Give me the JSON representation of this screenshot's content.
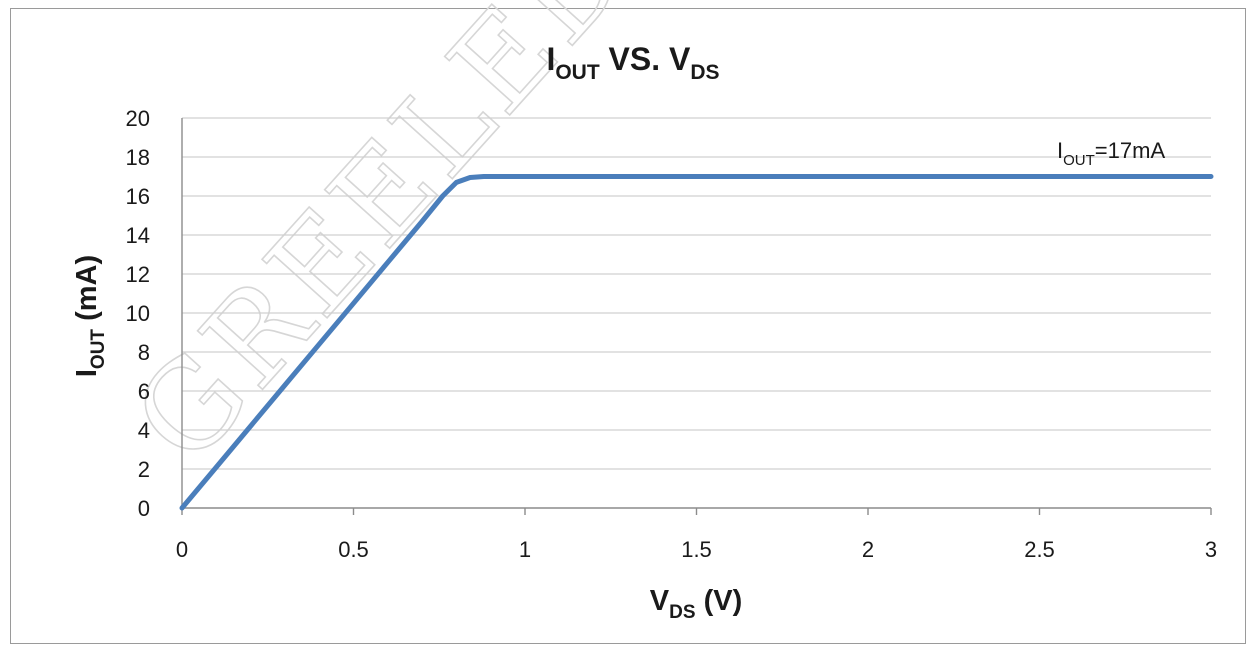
{
  "chart_data": {
    "type": "line",
    "title": {
      "base1": "I",
      "sub1": "OUT",
      "mid": " VS. V",
      "sub2": "DS"
    },
    "xlabel": {
      "base": "V",
      "sub": "DS",
      "rest": " (V)"
    },
    "ylabel": {
      "base": "I",
      "sub": "OUT",
      "rest": " (mA)"
    },
    "xlim": [
      0,
      3
    ],
    "ylim": [
      0,
      20
    ],
    "x_ticks": [
      0,
      0.5,
      1,
      1.5,
      2,
      2.5,
      3
    ],
    "x_tick_labels": [
      "0",
      "0.5",
      "1",
      "1.5",
      "2",
      "2.5",
      "3"
    ],
    "y_ticks": [
      0,
      2,
      4,
      6,
      8,
      10,
      12,
      14,
      16,
      18,
      20
    ],
    "y_tick_labels": [
      "0",
      "2",
      "4",
      "6",
      "8",
      "10",
      "12",
      "14",
      "16",
      "18",
      "20"
    ],
    "grid": "horizontal",
    "series": [
      {
        "color": "#4a7ebb",
        "x": [
          0,
          0.1,
          0.2,
          0.3,
          0.4,
          0.5,
          0.6,
          0.7,
          0.76,
          0.8,
          0.84,
          0.88,
          0.95,
          1.0,
          1.5,
          2.0,
          2.5,
          3.0
        ],
        "y": [
          0,
          2.1,
          4.2,
          6.3,
          8.4,
          10.5,
          12.6,
          14.7,
          16.0,
          16.7,
          16.95,
          17.0,
          17.0,
          17.0,
          17.0,
          17.0,
          17.0,
          17.0
        ]
      }
    ],
    "annotation": {
      "base": "I",
      "sub": "OUT",
      "rest": "=17mA"
    }
  },
  "watermark": "GREELED ELEC"
}
